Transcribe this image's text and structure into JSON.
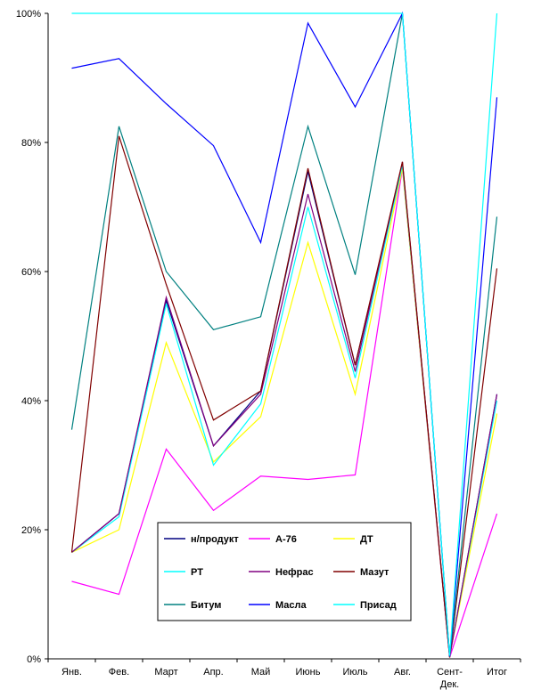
{
  "chart_data": {
    "type": "line",
    "categories": [
      "Янв.",
      "Фев.",
      "Март",
      "Апр.",
      "Май",
      "Июнь",
      "Июль",
      "Авг.",
      "Сент-Дек.",
      "Итог"
    ],
    "category_lines": [
      [
        "Янв."
      ],
      [
        "Фев."
      ],
      [
        "Март"
      ],
      [
        "Апр."
      ],
      [
        "Май"
      ],
      [
        "Июнь"
      ],
      [
        "Июль"
      ],
      [
        "Авг."
      ],
      [
        "Сент-",
        "Дек."
      ],
      [
        "Итог"
      ]
    ],
    "y_ticks": [
      "0%",
      "20%",
      "40%",
      "60%",
      "80%",
      "100%"
    ],
    "y_tick_values": [
      0,
      20,
      40,
      60,
      80,
      100
    ],
    "ylim": [
      0,
      100
    ],
    "grid": false,
    "legend_position": "bottom-center",
    "series": [
      {
        "name": "н/продукт",
        "color": "#000080",
        "values": [
          16.5,
          22.5,
          55.5,
          33,
          41.5,
          75.5,
          45.5,
          76.5,
          0.3,
          41
        ]
      },
      {
        "name": "А-76",
        "color": "#ff00ff",
        "values": [
          12,
          10,
          32.5,
          23,
          28.3,
          27.8,
          28.5,
          76,
          0.2,
          22.5
        ]
      },
      {
        "name": "ДТ",
        "color": "#ffff00",
        "values": [
          16.5,
          20,
          49,
          30.5,
          37.5,
          64.5,
          41,
          76,
          0.4,
          38
        ]
      },
      {
        "name": "РТ",
        "color": "#00ffff",
        "values": [
          16.5,
          22,
          55,
          30,
          39.5,
          70,
          43.5,
          76.5,
          0.5,
          40
        ]
      },
      {
        "name": "Нефрас",
        "color": "#800080",
        "values": [
          16.5,
          22.5,
          56,
          33,
          41,
          72,
          44.5,
          77,
          0.3,
          41
        ]
      },
      {
        "name": "Мазут",
        "color": "#800000",
        "values": [
          16.5,
          81,
          58,
          37,
          41.5,
          76,
          45.5,
          77,
          0.2,
          60.5
        ]
      },
      {
        "name": "Битум",
        "color": "#008080",
        "values": [
          35.5,
          82.5,
          60,
          51,
          53,
          82.5,
          59.5,
          100,
          0.3,
          68.5
        ]
      },
      {
        "name": "Масла",
        "color": "#0000ff",
        "values": [
          91.5,
          93,
          86,
          79.5,
          64.5,
          98.5,
          85.5,
          100,
          0.4,
          87
        ]
      },
      {
        "name": "Присад",
        "color": "#00ffff",
        "values": [
          100,
          100,
          100,
          100,
          100,
          100,
          100,
          100,
          0.5,
          100
        ]
      }
    ]
  }
}
